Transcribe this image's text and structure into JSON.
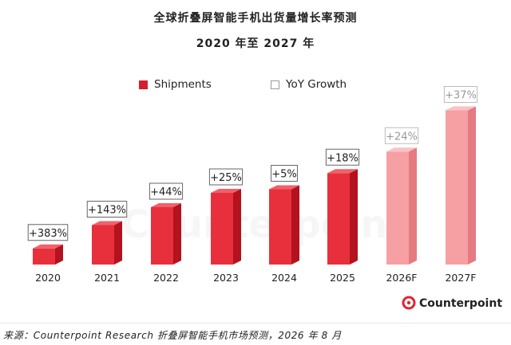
{
  "title": "全球折叠屏智能手机出货量增长率预测",
  "subtitle": "2020 年至 2027 年",
  "legend": {
    "shipments": "Shipments",
    "yoy": "YoY Growth"
  },
  "watermark": "Counterpoint",
  "logo_text": "Counterpoint",
  "footer": "来源：Counterpoint Research 折叠屏智能手机市场预测，2026 年 8 月",
  "colors": {
    "actual_front": "#e8303d",
    "actual_side": "#b3121e",
    "actual_top": "#f2606a",
    "forecast_front": "#f6a0a4",
    "forecast_side": "#e57a80",
    "forecast_top": "#f9c2c5",
    "label_border_actual": "#666666",
    "label_border_forecast": "#bbbbbb",
    "label_text_forecast": "#9a9a9a"
  },
  "chart_data": {
    "type": "bar",
    "categories": [
      "2020",
      "2021",
      "2022",
      "2023",
      "2024",
      "2025",
      "2026F",
      "2027F"
    ],
    "series": [
      {
        "name": "Shipments",
        "relative_values": [
          0.09,
          0.22,
          0.32,
          0.4,
          0.42,
          0.51,
          0.63,
          0.86
        ]
      },
      {
        "name": "YoY Growth",
        "labels": [
          "+383%",
          "+143%",
          "+44%",
          "+25%",
          "+5%",
          "+18%",
          "+24%",
          "+37%"
        ]
      }
    ],
    "forecast": [
      false,
      false,
      false,
      false,
      false,
      false,
      true,
      true
    ],
    "y_axis_shown": false,
    "legend_position": "top"
  }
}
